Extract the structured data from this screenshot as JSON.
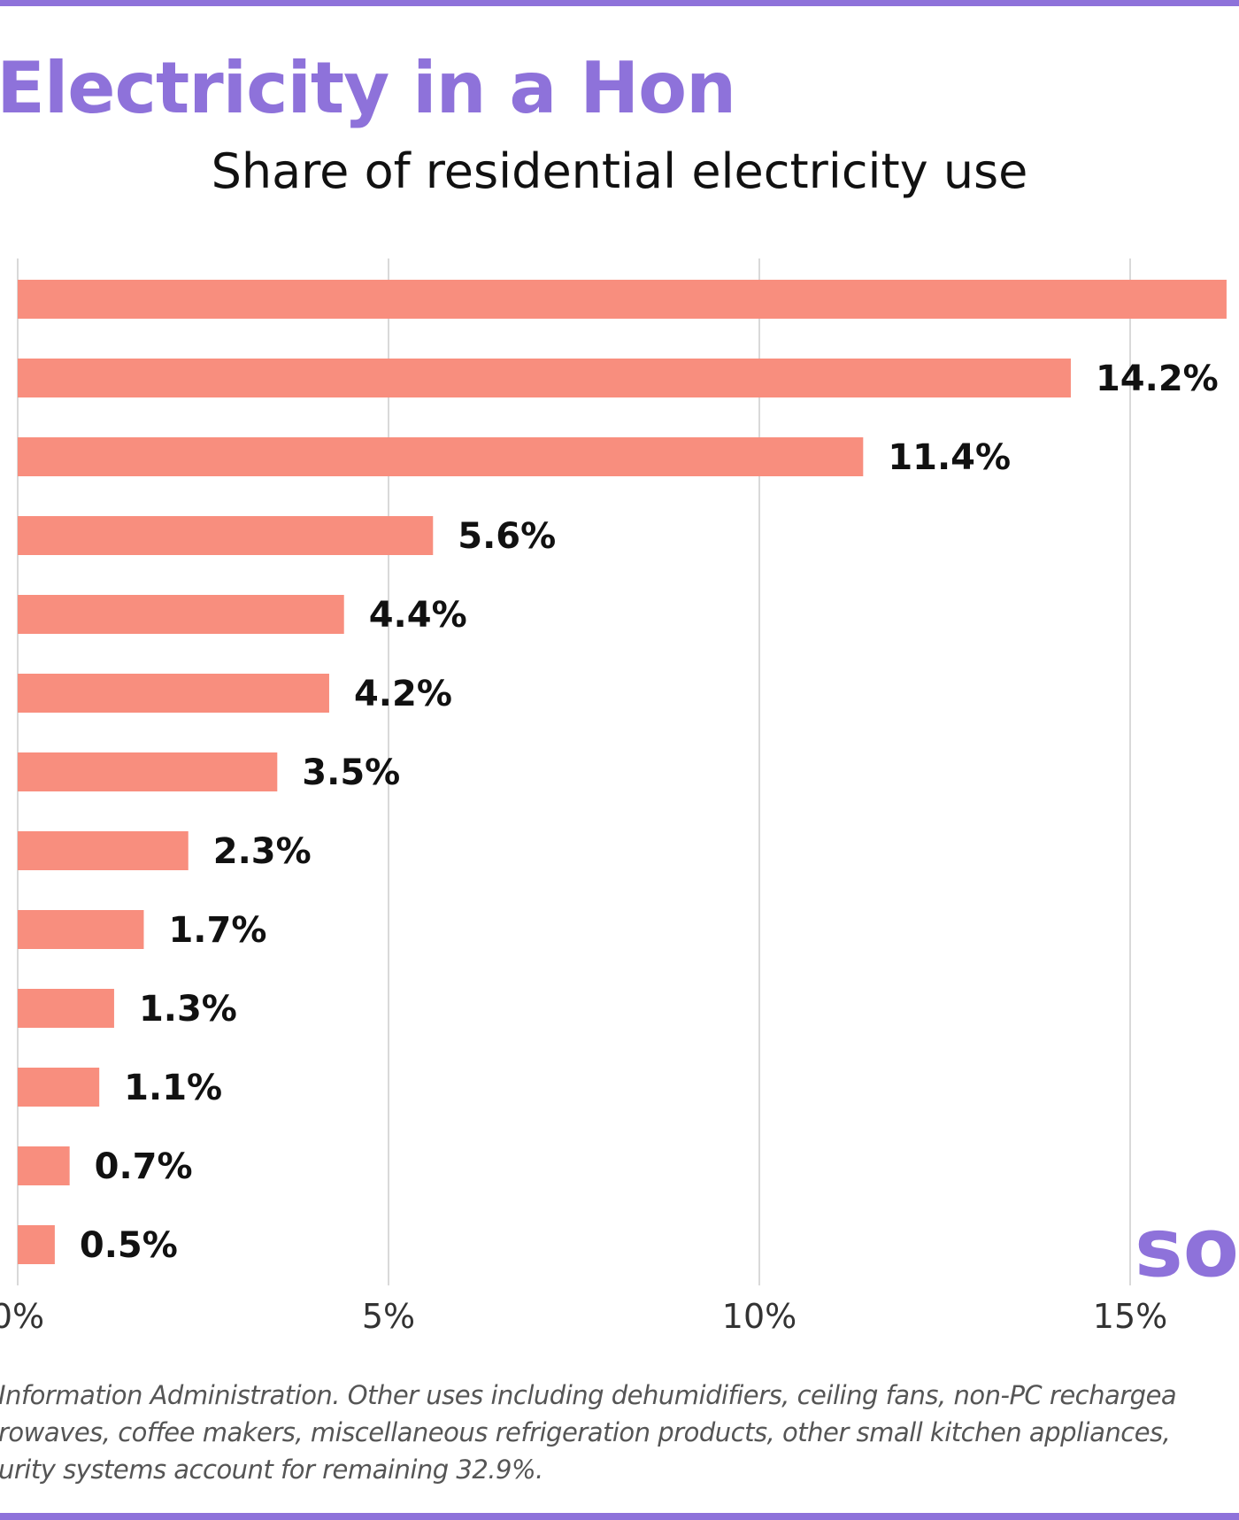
{
  "header": {
    "title": "at Uses The Most Electricity in a Hon",
    "subtitle": "Share of residential electricity use"
  },
  "chart_data": {
    "type": "bar",
    "orientation": "horizontal",
    "categories": [
      "",
      "",
      "",
      "",
      "",
      "",
      "",
      "",
      "",
      "",
      "",
      "",
      ""
    ],
    "values": [
      16.3,
      14.2,
      11.4,
      5.6,
      4.4,
      4.2,
      3.5,
      2.3,
      1.7,
      1.3,
      1.1,
      0.7,
      0.5
    ],
    "value_labels": [
      "",
      "14.2%",
      "11.4%",
      "5.6%",
      "4.4%",
      "4.2%",
      "3.5%",
      "2.3%",
      "1.7%",
      "1.3%",
      "1.1%",
      "0.7%",
      "0.5%"
    ],
    "x_ticks": [
      0,
      5,
      10,
      15
    ],
    "x_tick_labels": [
      "0%",
      "5%",
      "10%",
      "15%"
    ],
    "xlim": [
      0,
      16.5
    ],
    "grid": true,
    "legend": "none",
    "title": "at Uses The Most Electricity in a Hon",
    "subtitle": "Share of residential electricity use",
    "xlabel": "",
    "ylabel": ""
  },
  "footnote": {
    "lines": [
      "Information Administration. Other uses including dehumidifiers, ceiling fans, non-PC rechargea",
      "rowaves, coffee makers, miscellaneous refrigeration products, other small kitchen appliances,",
      "urity systems account for remaining 32.9%."
    ]
  },
  "logo": {
    "text": "so"
  },
  "colors": {
    "accent": "#8e72da",
    "bar": "#f88e7e",
    "grid": "#d9d9d9",
    "label": "#111111",
    "tick": "#333333"
  }
}
